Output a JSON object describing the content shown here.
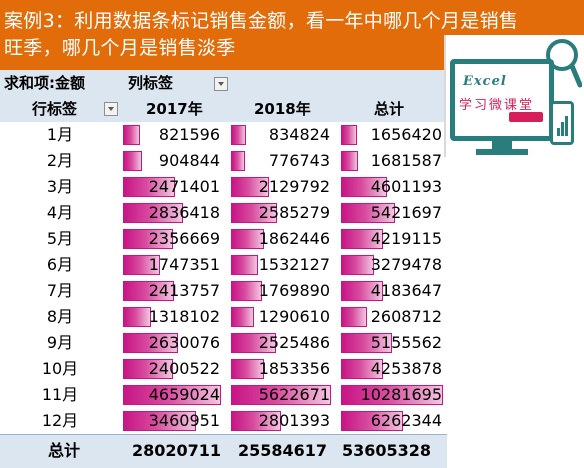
{
  "banner": {
    "line1": "案例3：利用数据条标记销售金额，看一年中哪几个月是销售",
    "line2": "旺季，哪几个月是销售淡季"
  },
  "logo": {
    "title": "Excel",
    "subtitle": "学习微课堂"
  },
  "pivot": {
    "sum_label": "求和项:金额",
    "col_label": "列标签",
    "row_label": "行标签",
    "columns": [
      "2017年",
      "2018年",
      "总计"
    ],
    "rows": [
      {
        "month": "1月",
        "values": [
          "821596",
          "834824",
          "1656420"
        ]
      },
      {
        "month": "2月",
        "values": [
          "904844",
          "776743",
          "1681587"
        ]
      },
      {
        "month": "3月",
        "values": [
          "2471401",
          "2129792",
          "4601193"
        ]
      },
      {
        "month": "4月",
        "values": [
          "2836418",
          "2585279",
          "5421697"
        ]
      },
      {
        "month": "5月",
        "values": [
          "2356669",
          "1862446",
          "4219115"
        ]
      },
      {
        "month": "6月",
        "values": [
          "1747351",
          "1532127",
          "3279478"
        ]
      },
      {
        "month": "7月",
        "values": [
          "2413757",
          "1769890",
          "4183647"
        ]
      },
      {
        "month": "8月",
        "values": [
          "1318102",
          "1290610",
          "2608712"
        ]
      },
      {
        "month": "9月",
        "values": [
          "2630076",
          "2525486",
          "5155562"
        ]
      },
      {
        "month": "10月",
        "values": [
          "2400522",
          "1853356",
          "4253878"
        ]
      },
      {
        "month": "11月",
        "values": [
          "4659024",
          "5622671",
          "10281695"
        ]
      },
      {
        "month": "12月",
        "values": [
          "3460951",
          "2801393",
          "6262344"
        ]
      }
    ],
    "total_label": "总计",
    "totals": [
      "28020711",
      "25584617",
      "53605328"
    ]
  },
  "colors": {
    "banner": "#e36c0a",
    "header_band": "#dce6f1",
    "data_bar": "#c71585"
  }
}
